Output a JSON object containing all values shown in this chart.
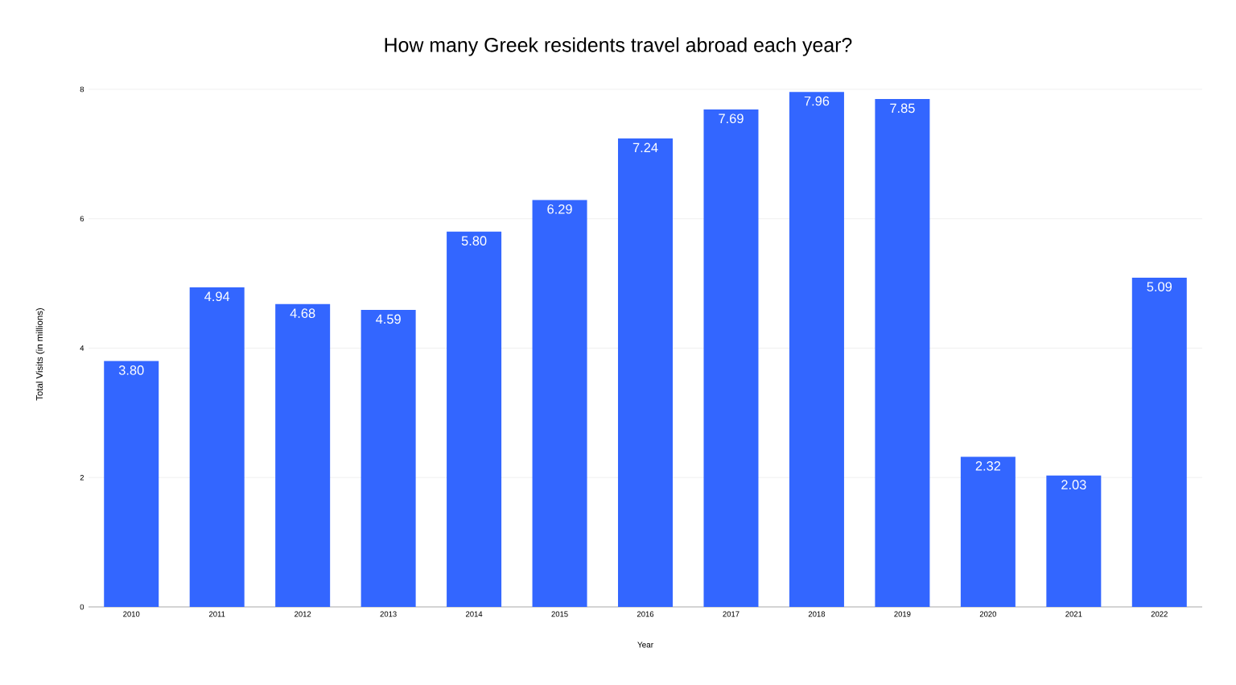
{
  "chart_data": {
    "type": "bar",
    "title": "How many Greek residents travel abroad each year?",
    "xlabel": "Year",
    "ylabel": "Total Visits (in millions)",
    "categories": [
      "2010",
      "2011",
      "2012",
      "2013",
      "2014",
      "2015",
      "2016",
      "2017",
      "2018",
      "2019",
      "2020",
      "2021",
      "2022"
    ],
    "values": [
      3.8,
      4.94,
      4.68,
      4.59,
      5.8,
      6.29,
      7.24,
      7.69,
      7.96,
      7.85,
      2.32,
      2.03,
      5.09
    ],
    "value_labels": [
      "3.80",
      "4.94",
      "4.68",
      "4.59",
      "5.80",
      "6.29",
      "7.24",
      "7.69",
      "7.96",
      "7.85",
      "2.32",
      "2.03",
      "5.09"
    ],
    "color": "#3366ff",
    "ylim": [
      0,
      8
    ],
    "yticks": [
      0,
      2,
      4,
      6,
      8
    ],
    "grid": "y"
  }
}
